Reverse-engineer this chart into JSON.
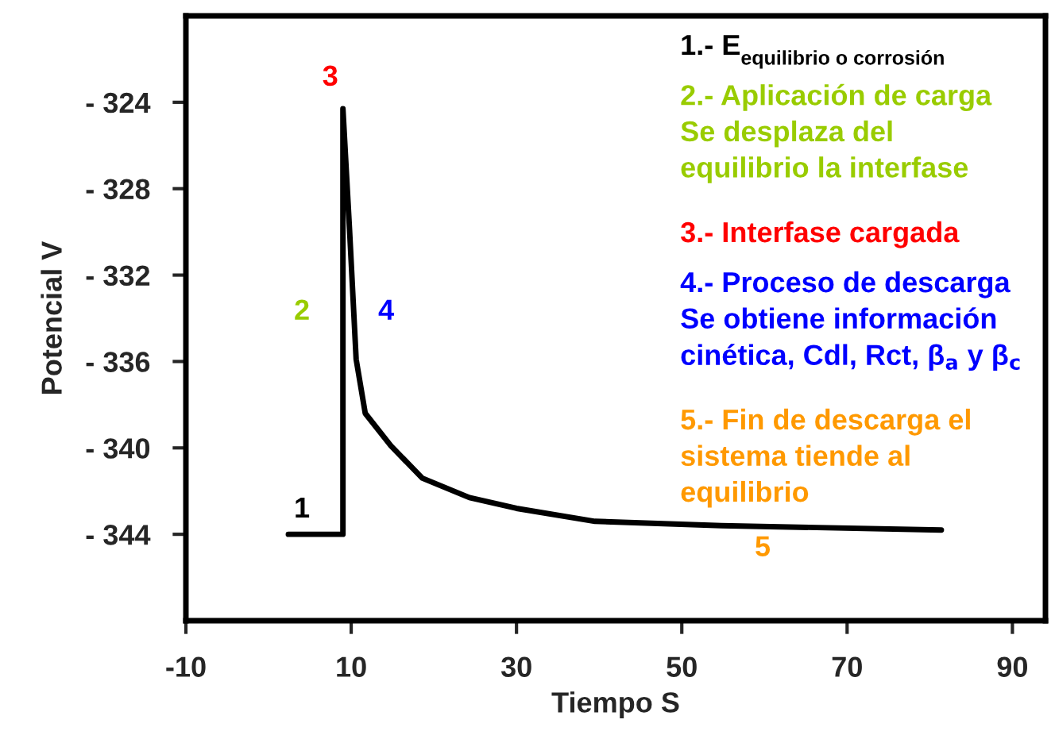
{
  "chart_data": {
    "type": "line",
    "xlabel": "Tiempo S",
    "ylabel": "Potencial V",
    "xlim": [
      -10,
      94
    ],
    "xticks": [
      -10,
      10,
      30,
      50,
      70,
      90
    ],
    "ylim": [
      -348,
      -320
    ],
    "yticks": [
      {
        "value": -324,
        "label": "- 324"
      },
      {
        "value": -328,
        "label": "- 328"
      },
      {
        "value": -332,
        "label": "- 332"
      },
      {
        "value": -336,
        "label": "- 336"
      },
      {
        "value": -340,
        "label": "- 340"
      },
      {
        "value": -344,
        "label": "- 344"
      }
    ],
    "series": [
      {
        "color": "#000000",
        "x": [
          2.4,
          9.0,
          9.0,
          9.8,
          10.6,
          11.7,
          14.8,
          18.6,
          24.3,
          30,
          39.5,
          54.8,
          81.4
        ],
        "values": [
          -344,
          -344,
          -324.3,
          -329.9,
          -335.9,
          -338.4,
          -339.9,
          -341.4,
          -342.3,
          -342.8,
          -343.4,
          -343.6,
          -343.8
        ]
      }
    ],
    "marker": "none",
    "line_style": "solid",
    "grid": false,
    "annotations": [
      "1",
      "2",
      "3",
      "4",
      "5",
      "1.- E$_{equilibrio o corrosión}$",
      "2.- Aplicación de carga\nSe desplaza del\nequilibrio la interfase",
      "3.- Interfase cargada",
      "4.- Proceso de descarga\nSe obtiene información\ncinética, Cdl, Rct, β$_{a}$ y β$_{c}$",
      "5.- Fin de descarga el\nsistema tiende al\nequilibrio"
    ]
  }
}
